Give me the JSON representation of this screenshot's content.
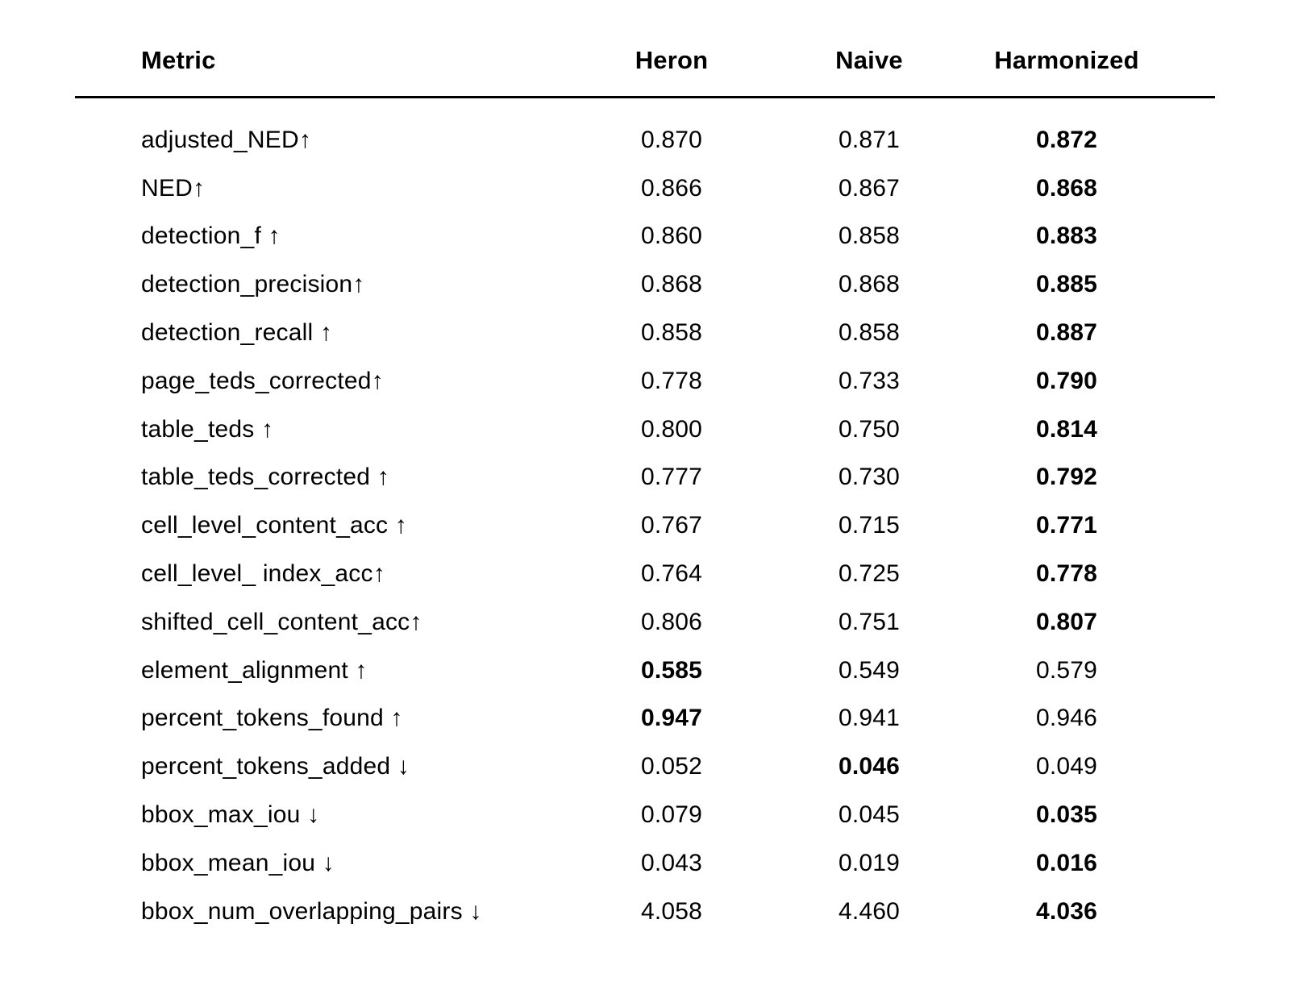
{
  "chart_data": {
    "type": "table",
    "title": "",
    "columns": [
      "Metric",
      "Heron",
      "Naive",
      "Harmonized"
    ],
    "rows": [
      {
        "metric": "adjusted_NED↑",
        "values": [
          "0.870",
          "0.871",
          "0.872"
        ],
        "bold_column": "Harmonized"
      },
      {
        "metric": "NED↑",
        "values": [
          "0.866",
          "0.867",
          "0.868"
        ],
        "bold_column": "Harmonized"
      },
      {
        "metric": "detection_f ↑",
        "values": [
          "0.860",
          "0.858",
          "0.883"
        ],
        "bold_column": "Harmonized"
      },
      {
        "metric": "detection_precision↑",
        "values": [
          "0.868",
          "0.868",
          "0.885"
        ],
        "bold_column": "Harmonized"
      },
      {
        "metric": "detection_recall ↑",
        "values": [
          "0.858",
          "0.858",
          "0.887"
        ],
        "bold_column": "Harmonized"
      },
      {
        "metric": "page_teds_corrected↑",
        "values": [
          "0.778",
          "0.733",
          "0.790"
        ],
        "bold_column": "Harmonized"
      },
      {
        "metric": "table_teds ↑",
        "values": [
          "0.800",
          "0.750",
          "0.814"
        ],
        "bold_column": "Harmonized"
      },
      {
        "metric": "table_teds_corrected ↑",
        "values": [
          "0.777",
          "0.730",
          "0.792"
        ],
        "bold_column": "Harmonized"
      },
      {
        "metric": "cell_level_content_acc ↑",
        "values": [
          "0.767",
          "0.715",
          "0.771"
        ],
        "bold_column": "Harmonized"
      },
      {
        "metric": "cell_level_ index_acc↑",
        "values": [
          "0.764",
          "0.725",
          "0.778"
        ],
        "bold_column": "Harmonized"
      },
      {
        "metric": "shifted_cell_content_acc↑",
        "values": [
          "0.806",
          "0.751",
          "0.807"
        ],
        "bold_column": "Harmonized"
      },
      {
        "metric": "element_alignment ↑",
        "values": [
          "0.585",
          "0.549",
          "0.579"
        ],
        "bold_column": "Heron"
      },
      {
        "metric": "percent_tokens_found ↑",
        "values": [
          "0.947",
          "0.941",
          "0.946"
        ],
        "bold_column": "Heron"
      },
      {
        "metric": "percent_tokens_added ↓",
        "values": [
          "0.052",
          "0.046",
          "0.049"
        ],
        "bold_column": "Naive"
      },
      {
        "metric": "bbox_max_iou ↓",
        "values": [
          "0.079",
          "0.045",
          "0.035"
        ],
        "bold_column": "Harmonized"
      },
      {
        "metric": "bbox_mean_iou ↓",
        "values": [
          "0.043",
          "0.019",
          "0.016"
        ],
        "bold_column": "Harmonized"
      },
      {
        "metric": "bbox_num_overlapping_pairs ↓",
        "values": [
          "4.058",
          "4.460",
          "4.036"
        ],
        "bold_column": "Harmonized"
      }
    ],
    "layout": {
      "value_alignment": "center",
      "bold_marks_best": true,
      "grid": "header-rule-only",
      "arrow_up_means": "higher is better",
      "arrow_down_means": "lower is better"
    },
    "colors": {
      "background": "#ffffff",
      "text": "#000000",
      "rule": "#000000"
    }
  }
}
